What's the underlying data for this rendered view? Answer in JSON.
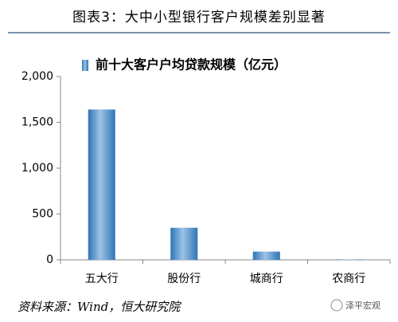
{
  "chart_data": {
    "type": "bar",
    "title": "图表3：大中小型银行客户规模差别显著",
    "legend": "前十大客户户均贷款规模（亿元）",
    "categories": [
      "五大行",
      "股份行",
      "城商行",
      "农商行"
    ],
    "values": [
      1640,
      350,
      90,
      5
    ],
    "color": "#2e75b6",
    "ylim": [
      0,
      2000
    ],
    "yticks": [
      0,
      500,
      {
        "value": 1000,
        "label": "1,000"
      },
      {
        "value": 1500,
        "label": "1,500"
      },
      {
        "value": 2000,
        "label": "2,000"
      }
    ],
    "source": "资料来源：Wind，恒大研究院",
    "watermark": "泽平宏观"
  }
}
